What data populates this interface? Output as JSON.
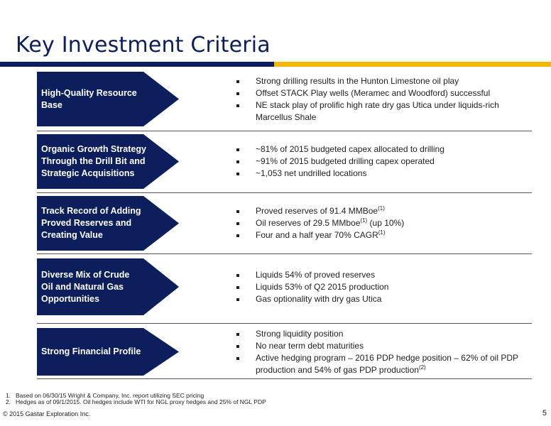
{
  "title": "Key Investment Criteria",
  "colors": {
    "navy": "#0d1e5c",
    "gold": "#f2b705"
  },
  "rows": [
    {
      "label": "High-Quality Resource\nBase",
      "bullets": [
        {
          "text": "Strong drilling results in the Hunton Limestone oil play"
        },
        {
          "text": "Offset STACK Play wells (Meramec and Woodford) successful"
        },
        {
          "text": "NE stack play of prolific high rate dry gas Utica under liquids-rich Marcellus Shale"
        }
      ]
    },
    {
      "label": "Organic Growth Strategy\nThrough the Drill Bit and\nStrategic Acquisitions",
      "bullets": [
        {
          "text": "~81% of 2015 budgeted capex allocated to drilling"
        },
        {
          "text": "~91% of 2015 budgeted drilling capex operated"
        },
        {
          "text": "~1,053 net undrilled locations"
        }
      ]
    },
    {
      "label": "Track Record of Adding\nProved Reserves and\nCreating Value",
      "bullets": [
        {
          "text": "Proved reserves of 91.4 MMBoe",
          "sup": "(1)"
        },
        {
          "text": "Oil reserves of 29.5 MMboe",
          "sup": "(1)",
          "tail": " (up 10%)"
        },
        {
          "text": "Four and a half year 70% CAGR",
          "sup": "(1)"
        }
      ]
    },
    {
      "label": "Diverse Mix of Crude\nOil and Natural Gas\nOpportunities",
      "bullets": [
        {
          "text": "Liquids 54% of proved reserves"
        },
        {
          "text": "Liquids 53% of Q2 2015 production"
        },
        {
          "text": "Gas optionality with dry gas Utica"
        }
      ]
    },
    {
      "label": "Strong Financial Profile",
      "bullets": [
        {
          "text": "Strong liquidity position"
        },
        {
          "text": "No near term debt maturities"
        },
        {
          "text": "Active hedging program – 2016 PDP hedge position – 62% of oil PDP production and 54% of gas PDP production",
          "sup": "(2)"
        }
      ]
    }
  ],
  "footnotes": [
    {
      "num": "1.",
      "text": "Based on 06/30/15 Wright & Company, Inc. report utilizing SEC pricing"
    },
    {
      "num": "2.",
      "text": "Hedges as of 09/1/2015. Oil hedges include WTI for NGL proxy hedges and 25% of NGL PDP"
    }
  ],
  "copyright": "© 2015 Gastar Exploration Inc.",
  "page_number": "5"
}
